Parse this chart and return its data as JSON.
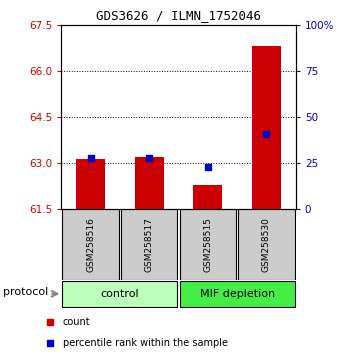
{
  "title": "GDS3626 / ILMN_1752046",
  "samples": [
    "GSM258516",
    "GSM258517",
    "GSM258515",
    "GSM258530"
  ],
  "count_values": [
    63.12,
    63.18,
    62.28,
    66.82
  ],
  "percentile_values": [
    27.5,
    27.5,
    23.0,
    40.5
  ],
  "left_ylim": [
    61.5,
    67.5
  ],
  "left_yticks": [
    61.5,
    63.0,
    64.5,
    66.0,
    67.5
  ],
  "right_ylim": [
    0,
    100
  ],
  "right_yticks": [
    0,
    25,
    50,
    75,
    100
  ],
  "right_yticklabels": [
    "0",
    "25",
    "50",
    "75",
    "100%"
  ],
  "bar_color": "#cc0000",
  "dot_color": "#0000cc",
  "bar_width": 0.5,
  "groups": [
    {
      "label": "control",
      "indices": [
        0,
        1
      ],
      "color": "#bbffbb"
    },
    {
      "label": "MIF depletion",
      "indices": [
        2,
        3
      ],
      "color": "#44ee44"
    }
  ],
  "protocol_label": "protocol",
  "legend_items": [
    {
      "color": "#cc0000",
      "label": "count"
    },
    {
      "color": "#0000cc",
      "label": "percentile rank within the sample"
    }
  ],
  "left_tick_color": "#cc0000",
  "right_tick_color": "#0000cc",
  "background_color": "#ffffff",
  "sample_box_color": "#cccccc"
}
